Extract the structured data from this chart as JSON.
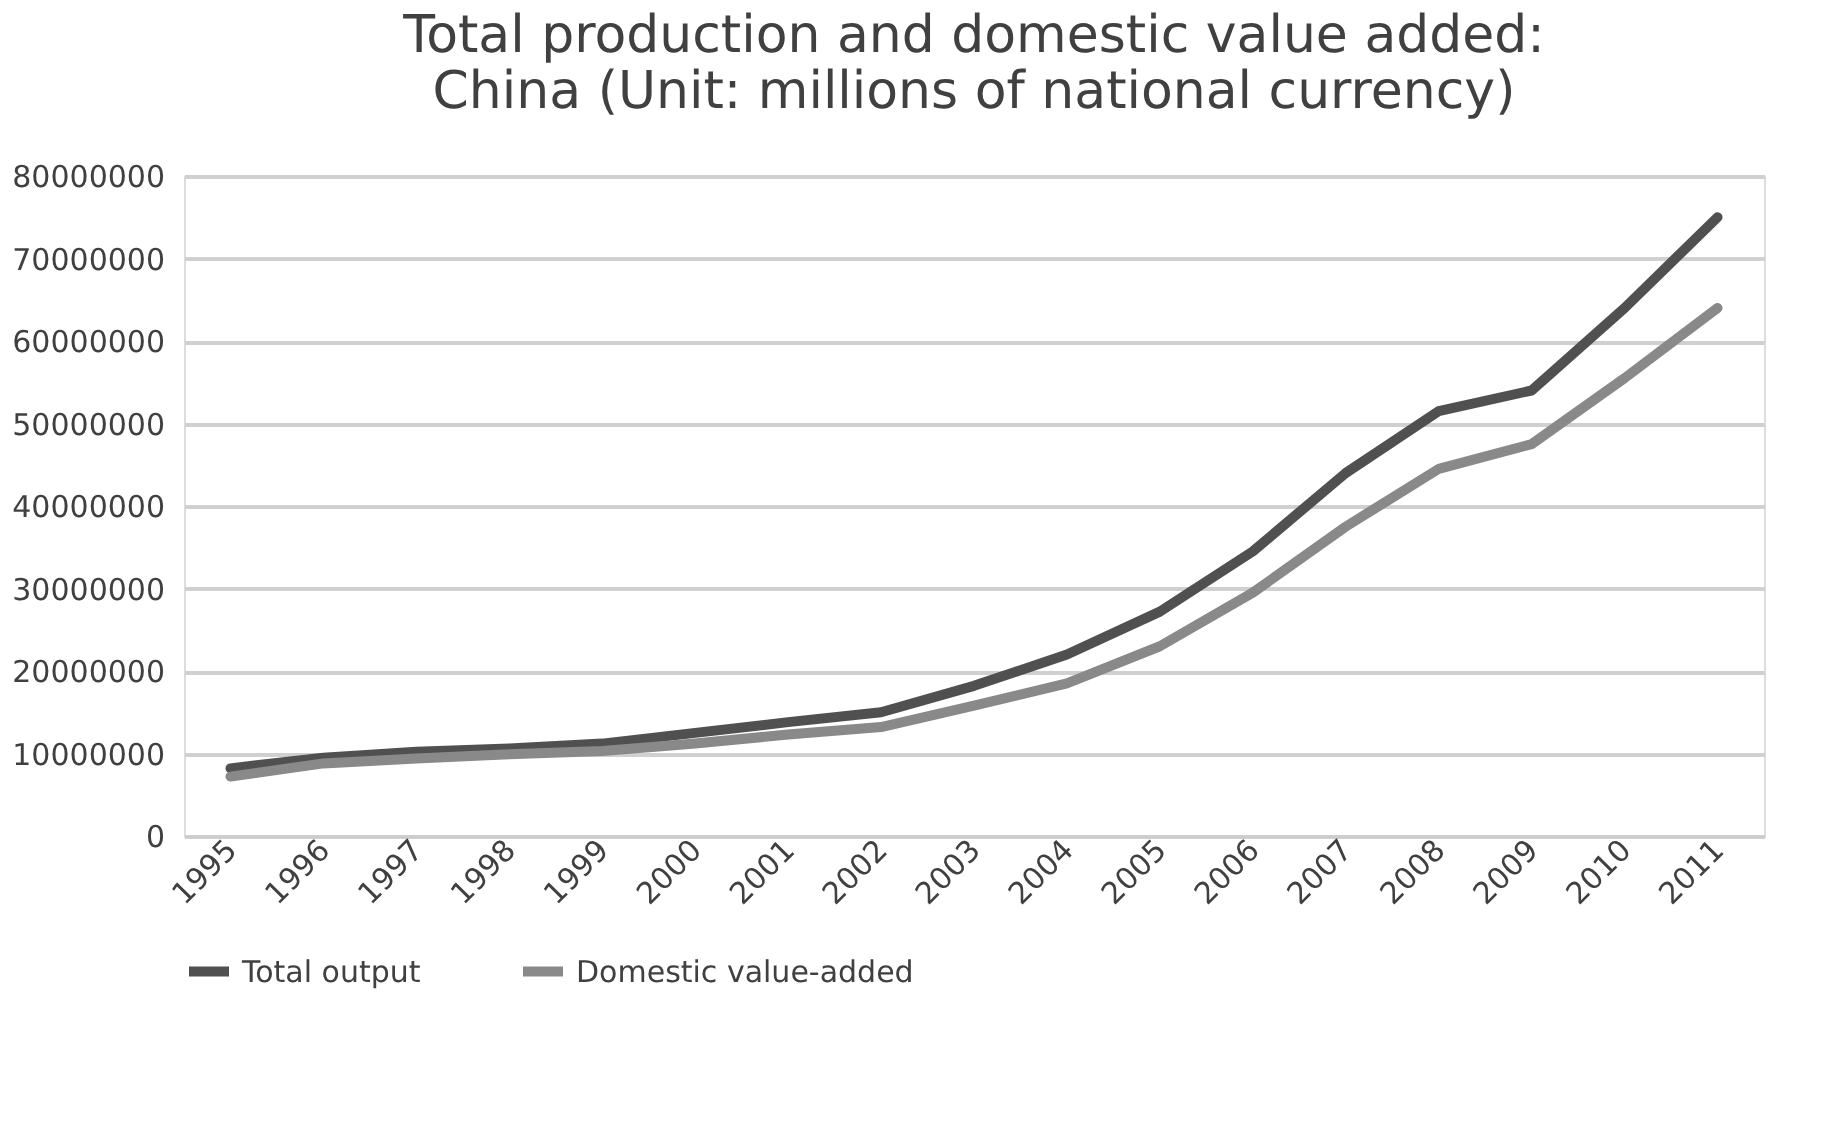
{
  "chart_data": {
    "type": "line",
    "title": "Total production and domestic value added:\nChina (Unit: millions of national currency)",
    "categories": [
      "1995",
      "1996",
      "1997",
      "1998",
      "1999",
      "2000",
      "2001",
      "2002",
      "2003",
      "2004",
      "2005",
      "2006",
      "2007",
      "2008",
      "2009",
      "2010",
      "2011"
    ],
    "series": [
      {
        "name": "Total output",
        "color": "#505050",
        "values": [
          8200000,
          9500000,
          10200000,
          10600000,
          11200000,
          12500000,
          13800000,
          15000000,
          18200000,
          22000000,
          27200000,
          34500000,
          44000000,
          51500000,
          54000000,
          64000000,
          75000000
        ]
      },
      {
        "name": "Domestic value-added",
        "color": "#898989",
        "values": [
          7200000,
          8800000,
          9400000,
          9900000,
          10300000,
          11200000,
          12300000,
          13200000,
          15800000,
          18500000,
          23000000,
          29500000,
          37500000,
          44500000,
          47500000,
          55500000,
          64000000
        ]
      }
    ],
    "ylim": [
      0,
      80000000
    ],
    "yticks": [
      0,
      10000000,
      20000000,
      30000000,
      40000000,
      50000000,
      60000000,
      70000000,
      80000000
    ],
    "grid": "y",
    "legend": "bottom",
    "marker": "none",
    "line_style": "solid"
  }
}
